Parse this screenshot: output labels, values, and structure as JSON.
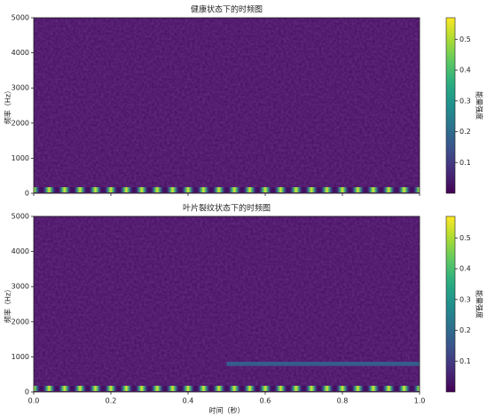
{
  "chart_data": [
    {
      "type": "heatmap",
      "title": "健康状态下的时频图",
      "ylabel": "频率（Hz）",
      "xlim": [
        0,
        1
      ],
      "ylim": [
        0,
        5000
      ],
      "xticks": [
        0.0,
        0.2,
        0.4,
        0.6,
        0.8,
        1.0
      ],
      "xticklabels": false,
      "yticks": [
        0,
        1000,
        2000,
        3000,
        4000,
        5000
      ],
      "background": 0.02,
      "bands": [
        {
          "freq": 100,
          "bandwidth": 150,
          "start": 0,
          "end": 1,
          "intensity": 0.55,
          "pulses": 25
        }
      ],
      "clim": [
        0,
        0.57
      ],
      "cticks": [
        0.1,
        0.2,
        0.3,
        0.4,
        0.5
      ],
      "clabel": "能量强度"
    },
    {
      "type": "heatmap",
      "title": "叶片裂纹状态下的时频图",
      "ylabel": "频率（Hz）",
      "xlabel": "时间（秒）",
      "xlim": [
        0,
        1
      ],
      "ylim": [
        0,
        5000
      ],
      "xticks": [
        {
          "value": 0,
          "label": "0.0"
        },
        {
          "value": 0.2,
          "label": "0.2"
        },
        {
          "value": 0.4,
          "label": "0.4"
        },
        {
          "value": 0.6,
          "label": "0.6"
        },
        {
          "value": 0.8,
          "label": "0.8"
        },
        {
          "value": 1,
          "label": "1.0"
        }
      ],
      "xticklabels": true,
      "yticks": [
        0,
        1000,
        2000,
        3000,
        4000,
        5000
      ],
      "background": 0.02,
      "bands": [
        {
          "freq": 100,
          "bandwidth": 150,
          "start": 0,
          "end": 1,
          "intensity": 0.55,
          "pulses": 25
        },
        {
          "freq": 800,
          "bandwidth": 120,
          "start": 0.5,
          "end": 1,
          "intensity": 0.17,
          "pulses": 0
        }
      ],
      "clim": [
        0,
        0.57
      ],
      "cticks": [
        0.1,
        0.2,
        0.3,
        0.4,
        0.5
      ],
      "clabel": "能量强度"
    }
  ]
}
